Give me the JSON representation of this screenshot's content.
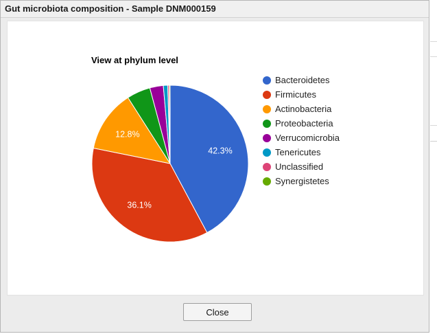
{
  "dialog": {
    "title": "Gut microbiota composition - Sample DNM000159",
    "close_label": "Close"
  },
  "chart_data": {
    "type": "pie",
    "title": "View at phylum level",
    "legend_position": "right",
    "slices": [
      {
        "label": "Bacteroidetes",
        "value": 42.3,
        "color": "#3366cc",
        "shown_label": "42.3%"
      },
      {
        "label": "Firmicutes",
        "value": 36.1,
        "color": "#dc3912",
        "shown_label": "36.1%"
      },
      {
        "label": "Actinobacteria",
        "value": 12.8,
        "color": "#ff9900",
        "shown_label": "12.8%"
      },
      {
        "label": "Proteobacteria",
        "value": 4.9,
        "color": "#109618",
        "shown_label": ""
      },
      {
        "label": "Verrucomicrobia",
        "value": 2.8,
        "color": "#990099",
        "shown_label": ""
      },
      {
        "label": "Tenericutes",
        "value": 0.9,
        "color": "#0099c6",
        "shown_label": ""
      },
      {
        "label": "Unclassified",
        "value": 0.3,
        "color": "#dd4477",
        "shown_label": ""
      },
      {
        "label": "Synergistetes",
        "value": 0.2,
        "color": "#66aa00",
        "shown_label": ""
      }
    ]
  }
}
